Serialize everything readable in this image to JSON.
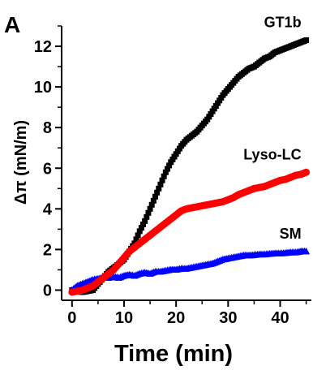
{
  "chart_data": {
    "type": "scatter",
    "panel_label": "A",
    "title": "",
    "xlabel": "Time (min)",
    "ylabel": "Δπ (mN/m)",
    "xlim": [
      -2,
      46
    ],
    "ylim": [
      -0.5,
      13
    ],
    "xticks": [
      0,
      10,
      20,
      30,
      40
    ],
    "yticks": [
      0,
      2,
      4,
      6,
      8,
      10,
      12
    ],
    "x_minor_step": 5,
    "y_minor_step": 1,
    "grid": false,
    "legend": "direct labels at line ends",
    "series": [
      {
        "name": "GT1b",
        "color": "#000000",
        "marker": "square",
        "points": [
          [
            0,
            0
          ],
          [
            2,
            -0.1
          ],
          [
            4,
            0
          ],
          [
            5,
            0.3
          ],
          [
            6,
            0.6
          ],
          [
            7,
            0.9
          ],
          [
            8,
            1.1
          ],
          [
            9,
            1.3
          ],
          [
            10,
            1.5
          ],
          [
            11,
            1.9
          ],
          [
            12,
            2.3
          ],
          [
            13,
            2.9
          ],
          [
            14,
            3.4
          ],
          [
            15,
            4.0
          ],
          [
            16,
            4.6
          ],
          [
            17,
            5.2
          ],
          [
            18,
            5.8
          ],
          [
            19,
            6.3
          ],
          [
            20,
            6.7
          ],
          [
            21,
            7.1
          ],
          [
            22,
            7.4
          ],
          [
            23,
            7.6
          ],
          [
            24,
            7.8
          ],
          [
            25,
            8.1
          ],
          [
            26,
            8.4
          ],
          [
            27,
            8.8
          ],
          [
            28,
            9.2
          ],
          [
            29,
            9.6
          ],
          [
            30,
            9.9
          ],
          [
            31,
            10.2
          ],
          [
            32,
            10.5
          ],
          [
            33,
            10.7
          ],
          [
            34,
            10.9
          ],
          [
            35,
            11.0
          ],
          [
            36,
            11.2
          ],
          [
            37,
            11.4
          ],
          [
            38,
            11.5
          ],
          [
            39,
            11.7
          ],
          [
            40,
            11.8
          ],
          [
            41,
            11.9
          ],
          [
            42,
            12.0
          ],
          [
            43,
            12.1
          ],
          [
            44,
            12.2
          ],
          [
            45,
            12.3
          ]
        ]
      },
      {
        "name": "Lyso-LC",
        "color": "#ff0000",
        "marker": "circle",
        "points": [
          [
            0,
            -0.1
          ],
          [
            2,
            0
          ],
          [
            4,
            0.2
          ],
          [
            5,
            0.4
          ],
          [
            6,
            0.6
          ],
          [
            7,
            0.8
          ],
          [
            8,
            1.0
          ],
          [
            9,
            1.3
          ],
          [
            10,
            1.6
          ],
          [
            11,
            1.9
          ],
          [
            12,
            2.1
          ],
          [
            13,
            2.3
          ],
          [
            14,
            2.5
          ],
          [
            15,
            2.7
          ],
          [
            16,
            2.9
          ],
          [
            17,
            3.1
          ],
          [
            18,
            3.3
          ],
          [
            19,
            3.5
          ],
          [
            20,
            3.7
          ],
          [
            21,
            3.9
          ],
          [
            22,
            4.0
          ],
          [
            23,
            4.05
          ],
          [
            24,
            4.1
          ],
          [
            25,
            4.15
          ],
          [
            26,
            4.2
          ],
          [
            27,
            4.25
          ],
          [
            28,
            4.3
          ],
          [
            29,
            4.35
          ],
          [
            30,
            4.45
          ],
          [
            31,
            4.55
          ],
          [
            32,
            4.7
          ],
          [
            33,
            4.8
          ],
          [
            34,
            4.9
          ],
          [
            35,
            5.0
          ],
          [
            36,
            5.05
          ],
          [
            37,
            5.1
          ],
          [
            38,
            5.2
          ],
          [
            39,
            5.3
          ],
          [
            40,
            5.4
          ],
          [
            41,
            5.45
          ],
          [
            42,
            5.55
          ],
          [
            43,
            5.65
          ],
          [
            44,
            5.7
          ],
          [
            45,
            5.8
          ]
        ]
      },
      {
        "name": "SM",
        "color": "#0000ff",
        "marker": "triangle",
        "points": [
          [
            0,
            0
          ],
          [
            1,
            0.2
          ],
          [
            2,
            0.3
          ],
          [
            3,
            0.4
          ],
          [
            4,
            0.5
          ],
          [
            5,
            0.55
          ],
          [
            6,
            0.6
          ],
          [
            7,
            0.6
          ],
          [
            8,
            0.65
          ],
          [
            9,
            0.6
          ],
          [
            10,
            0.7
          ],
          [
            11,
            0.75
          ],
          [
            12,
            0.7
          ],
          [
            13,
            0.8
          ],
          [
            14,
            0.85
          ],
          [
            15,
            0.8
          ],
          [
            16,
            0.9
          ],
          [
            17,
            0.9
          ],
          [
            18,
            0.95
          ],
          [
            19,
            1.0
          ],
          [
            20,
            1.0
          ],
          [
            21,
            1.05
          ],
          [
            22,
            1.05
          ],
          [
            23,
            1.1
          ],
          [
            24,
            1.15
          ],
          [
            25,
            1.2
          ],
          [
            26,
            1.25
          ],
          [
            27,
            1.3
          ],
          [
            28,
            1.4
          ],
          [
            29,
            1.5
          ],
          [
            30,
            1.55
          ],
          [
            31,
            1.6
          ],
          [
            32,
            1.65
          ],
          [
            33,
            1.7
          ],
          [
            34,
            1.7
          ],
          [
            35,
            1.72
          ],
          [
            36,
            1.75
          ],
          [
            37,
            1.75
          ],
          [
            38,
            1.78
          ],
          [
            39,
            1.8
          ],
          [
            40,
            1.8
          ],
          [
            41,
            1.82
          ],
          [
            42,
            1.85
          ],
          [
            43,
            1.85
          ],
          [
            44,
            1.9
          ],
          [
            45,
            1.9
          ]
        ]
      }
    ]
  }
}
